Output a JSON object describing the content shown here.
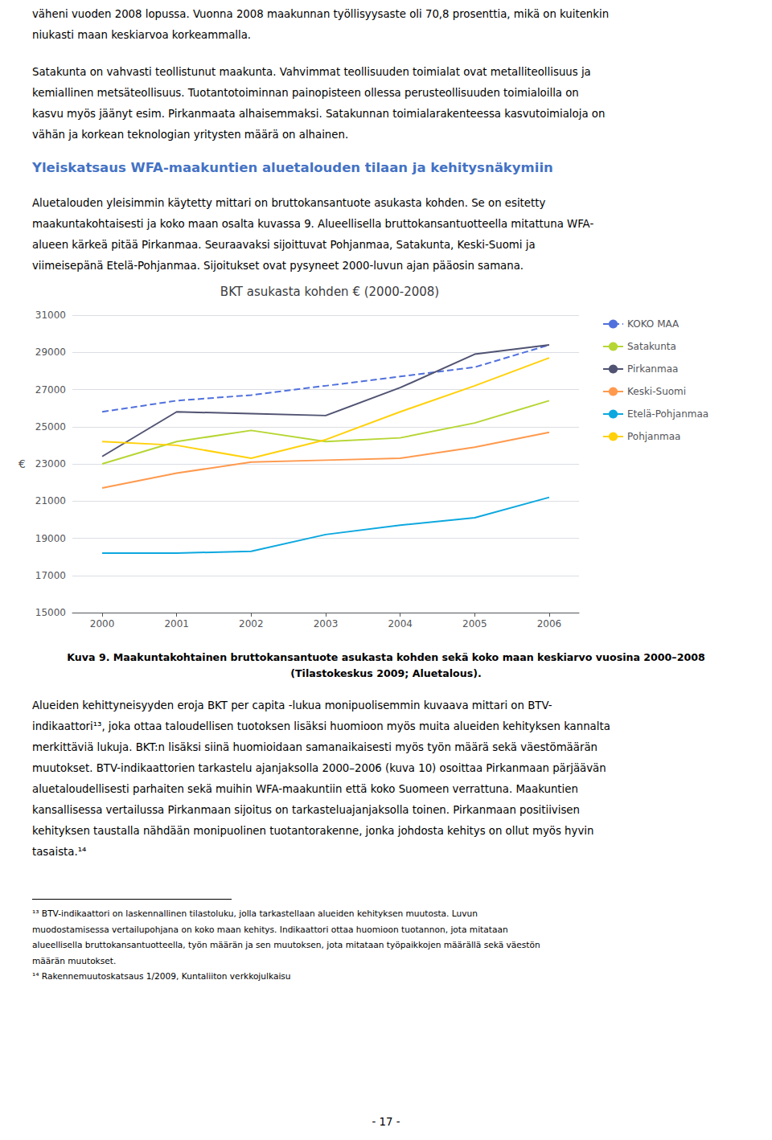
{
  "chart_data": {
    "type": "line",
    "title": "BKT asukasta kohden € (2000-2008)",
    "ylabel": "€",
    "x": [
      2000,
      2001,
      2002,
      2003,
      2004,
      2005,
      2006
    ],
    "xlim": [
      1999.6,
      2006.4
    ],
    "xticks": [
      2000,
      2001,
      2002,
      2003,
      2004,
      2005,
      2006
    ],
    "ylim": [
      15000,
      31000
    ],
    "yticks": [
      15000,
      17000,
      19000,
      21000,
      23000,
      25000,
      27000,
      29000,
      31000
    ],
    "grid": true,
    "legend": "right",
    "series": [
      {
        "name": "KOKO MAA",
        "line_style": "dashed",
        "values": [
          25800,
          26400,
          26700,
          27200,
          27700,
          28200,
          29400
        ]
      },
      {
        "name": "Satakunta",
        "line_style": "solid",
        "values": [
          23000,
          24200,
          24800,
          24200,
          24400,
          25200,
          26400
        ]
      },
      {
        "name": "Pirkanmaa",
        "line_style": "solid",
        "values": [
          23400,
          25800,
          25700,
          25600,
          27100,
          28900,
          29400
        ]
      },
      {
        "name": "Keski-Suomi",
        "line_style": "solid",
        "values": [
          21700,
          22500,
          23100,
          23200,
          23300,
          23900,
          24700
        ]
      },
      {
        "name": "Etelä-Pohjanmaa",
        "line_style": "solid",
        "values": [
          18200,
          18200,
          18300,
          19200,
          19700,
          20100,
          21200
        ]
      },
      {
        "name": "Pohjanmaa",
        "line_style": "solid",
        "values": [
          24200,
          24000,
          23300,
          24300,
          25800,
          27200,
          28700
        ]
      }
    ]
  },
  "page_text": {
    "paragraphs_before": [
      [
        "väheni vuoden 2008 lopussa. Vuonna 2008 maakunnan työllisyysaste oli 70,8 prosenttia, mikä on kuitenkin",
        "niukasti maan keskiarvoa korkeammalla."
      ],
      [
        "Satakunta on vahvasti teollistunut maakunta. Vahvimmat teollisuuden toimialat ovat metalliteollisuus ja",
        "kemiallinen metsäteollisuus. Tuotantotoiminnan painopisteen ollessa perusteollisuuden toimialoilla on",
        "kasvu myös jäänyt esim. Pirkanmaata alhaisemmaksi. Satakunnan toimialarakenteessa kasvutoimialoja on",
        "vähän ja korkean teknologian yritysten määrä on alhainen."
      ]
    ],
    "heading": "Yleiskatsaus WFA-maakuntien aluetalouden tilaan ja kehitysnäkymiin",
    "paragraph_after_heading": [
      "Aluetalouden yleisimmin käytetty mittari on bruttokansantuote asukasta kohden. Se on esitetty",
      "maakuntakohtaisesti ja koko maan osalta kuvassa 9. Alueellisella bruttokansantuotteella mitattuna WFA-",
      "alueen kärkeä pitää Pirkanmaa. Seuraavaksi sijoittuvat Pohjanmaa, Satakunta, Keski-Suomi ja",
      "viimeisepänä Etelä-Pohjanmaa. Sijoitukset ovat pysyneet 2000-luvun ajan pääosin samana."
    ],
    "caption": [
      "Kuva 9. Maakuntakohtainen bruttokansantuote asukasta kohden sekä koko maan keskiarvo vuosina 2000–2008",
      "(Tilastokeskus 2009; Aluetalous)."
    ],
    "paragraph_after_chart": [
      "Alueiden kehittyneisyyden eroja BKT per capita -lukua monipuolisemmin kuvaava mittari on BTV-",
      "indikaattori¹³, joka ottaa taloudellisen tuotoksen lisäksi huomioon myös muita alueiden kehityksen kannalta",
      "merkittäviä lukuja. BKT:n lisäksi siinä huomioidaan samanaikaisesti myös työn määrä sekä väestömäärän",
      "muutokset. BTV-indikaattorien tarkastelu ajanjaksolla 2000–2006 (kuva 10) osoittaa Pirkanmaan pärjäävän",
      "aluetaloudellisesti parhaiten sekä muihin WFA-maakuntiin että koko Suomeen verrattuna. Maakuntien",
      "kansallisessa vertailussa Pirkanmaan sijoitus on tarkasteluajanjaksolla toinen. Pirkanmaan positiivisen",
      "kehityksen taustalla nähdään monipuolinen tuotantorakenne, jonka johdosta kehitys on ollut myös hyvin",
      "tasaista.¹⁴"
    ],
    "footnotes": [
      "¹³ BTV-indikaattori on laskennallinen tilastoluku, jolla tarkastellaan alueiden kehityksen muutosta. Luvun",
      "muodostamisessa vertailupohjana on koko maan kehitys. Indikaattori ottaa huomioon tuotannon, jota mitataan",
      "alueellisella bruttokansantuotteella, työn määrän ja sen muutoksen, jota mitataan työpaikkojen määrällä sekä väestön",
      "määrän muutokset.",
      "¹⁴ Rakennemuutoskatsaus 1/2009, Kuntaliiton verkkojulkaisu"
    ],
    "page_number": "- 17 -"
  }
}
